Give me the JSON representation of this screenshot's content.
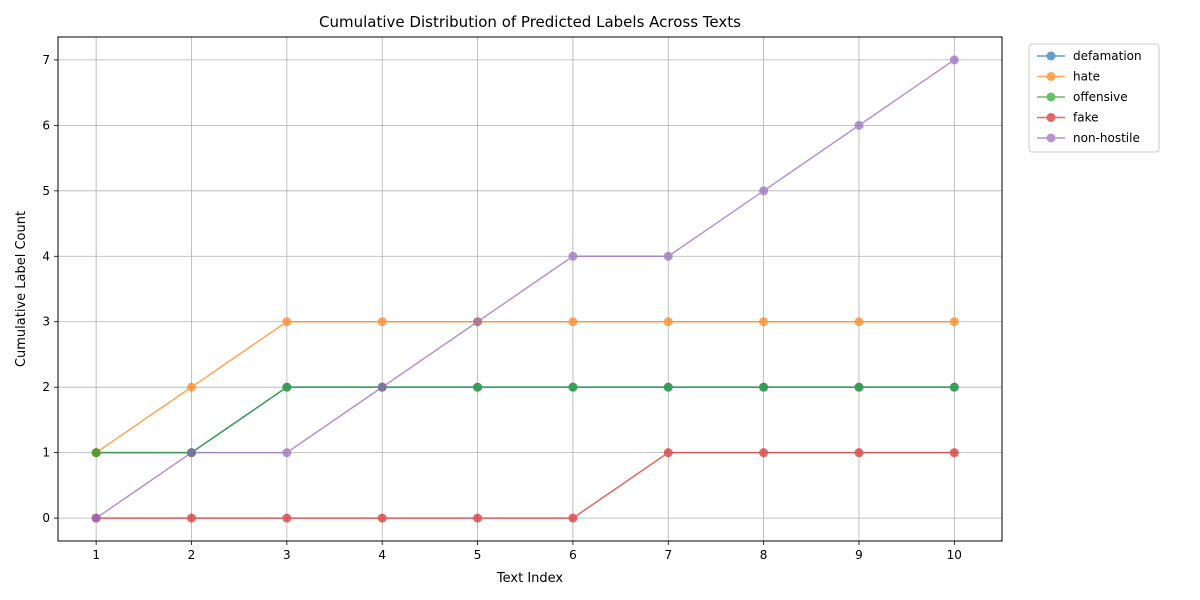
{
  "chart_data": {
    "type": "line",
    "title": "Cumulative Distribution of Predicted Labels Across Texts",
    "xlabel": "Text Index",
    "ylabel": "Cumulative Label Count",
    "x": [
      1,
      2,
      3,
      4,
      5,
      6,
      7,
      8,
      9,
      10
    ],
    "xlim": [
      0.6,
      10.5
    ],
    "ylim": [
      -0.35,
      7.35
    ],
    "xticks": [
      1,
      2,
      3,
      4,
      5,
      6,
      7,
      8,
      9,
      10
    ],
    "yticks": [
      0,
      1,
      2,
      3,
      4,
      5,
      6,
      7
    ],
    "grid": true,
    "legend_position": "outside-top-right",
    "series": [
      {
        "name": "defamation",
        "color": "#1f77b4",
        "values": [
          1,
          1,
          2,
          2,
          2,
          2,
          2,
          2,
          2,
          2
        ]
      },
      {
        "name": "hate",
        "color": "#ff7f0e",
        "values": [
          1,
          2,
          3,
          3,
          3,
          3,
          3,
          3,
          3,
          3
        ]
      },
      {
        "name": "offensive",
        "color": "#2ca02c",
        "values": [
          1,
          1,
          2,
          2,
          2,
          2,
          2,
          2,
          2,
          2
        ]
      },
      {
        "name": "fake",
        "color": "#d62728",
        "values": [
          0,
          0,
          0,
          0,
          0,
          0,
          1,
          1,
          1,
          1
        ]
      },
      {
        "name": "non-hostile",
        "color": "#9467bd",
        "values": [
          0,
          1,
          1,
          2,
          3,
          4,
          4,
          5,
          6,
          7
        ]
      }
    ]
  }
}
